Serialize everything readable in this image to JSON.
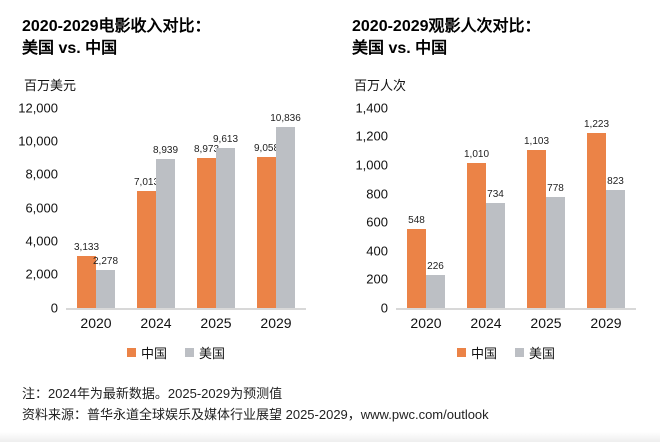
{
  "chart_data": [
    {
      "type": "bar",
      "title": "2020-2029电影收入对比：美国 vs. 中国",
      "title_lines": [
        "2020-2029电影收入对比：",
        "美国 vs. 中国"
      ],
      "ylabel": "百万美元",
      "xlabel": "",
      "ylim": [
        0,
        12000
      ],
      "ytick_step": 2000,
      "grid": false,
      "legend_position": "bottom",
      "categories": [
        "2020",
        "2024",
        "2025",
        "2029"
      ],
      "series": [
        {
          "name": "中国",
          "key": "china",
          "color": "#EB8347",
          "values": [
            3133,
            7013,
            8973,
            9058
          ]
        },
        {
          "name": "美国",
          "key": "usa",
          "color": "#BCBFC4",
          "values": [
            2278,
            8939,
            9613,
            10836
          ]
        }
      ]
    },
    {
      "type": "bar",
      "title": "2020-2029观影人次对比：美国 vs. 中国",
      "title_lines": [
        "2020-2029观影人次对比：",
        "美国 vs. 中国"
      ],
      "ylabel": "百万人次",
      "xlabel": "",
      "ylim": [
        0,
        1400
      ],
      "ytick_step": 200,
      "grid": false,
      "legend_position": "bottom",
      "categories": [
        "2020",
        "2024",
        "2025",
        "2029"
      ],
      "series": [
        {
          "name": "中国",
          "key": "china",
          "color": "#EB8347",
          "values": [
            548,
            1010,
            1103,
            1223
          ]
        },
        {
          "name": "美国",
          "key": "usa",
          "color": "#BCBFC4",
          "values": [
            226,
            734,
            778,
            823
          ]
        }
      ]
    }
  ],
  "colors": {
    "china_orange": "#EB8347",
    "usa_gray": "#BCBFC4",
    "baseline_gray": "#D8D8D8"
  },
  "notes": {
    "line1": "注：2024年为最新数据。2025-2029为预测值",
    "line2": "资料来源：普华永道全球娱乐及媒体行业展望 2025-2029，www.pwc.com/outlook"
  }
}
